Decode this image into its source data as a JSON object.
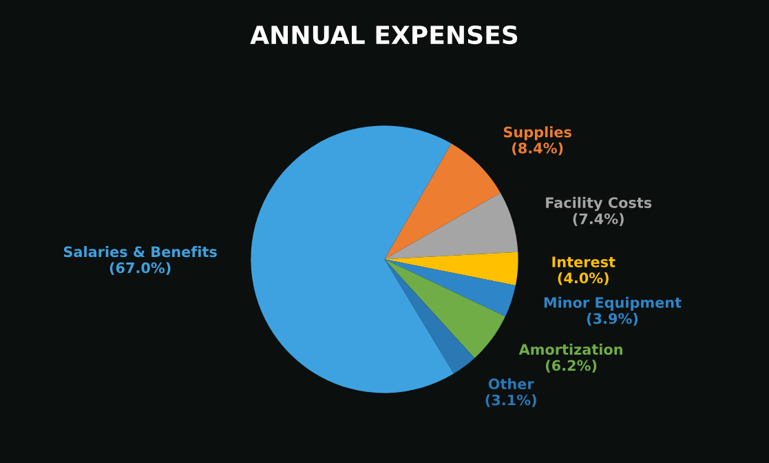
{
  "chart_data": {
    "type": "pie",
    "title": "ANNUAL EXPENSES",
    "categories": [
      "Supplies",
      "Facility Costs",
      "Interest",
      "Minor Equipment",
      "Amortization",
      "Other",
      "Salaries & Benefits"
    ],
    "values": [
      8.4,
      7.4,
      4.0,
      3.9,
      6.2,
      3.1,
      67.0
    ],
    "colors": [
      "#ed7d31",
      "#a5a5a5",
      "#ffc000",
      "#2e86c9",
      "#70ad47",
      "#2a78b4",
      "#3ea2e0"
    ],
    "value_labels": [
      "(8.4%)",
      "(7.4%)",
      "(4.0%)",
      "(3.9%)",
      "(6.2%)",
      "(3.1%)",
      "(67.0%)"
    ],
    "legend": false
  }
}
